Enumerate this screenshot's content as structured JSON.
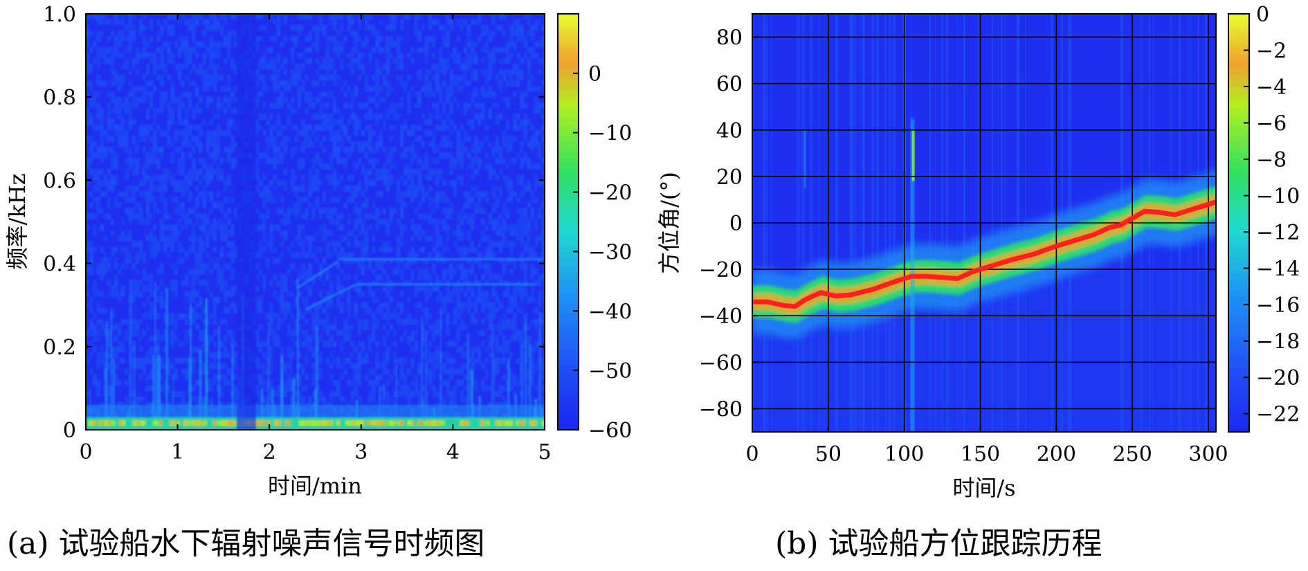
{
  "chart_data": [
    {
      "type": "heatmap",
      "title": "",
      "caption": "(a) 试验船水下辐射噪声信号时频图",
      "xlabel": "时间/min",
      "ylabel": "频率/kHz",
      "xlim": [
        0,
        5
      ],
      "ylim": [
        0,
        1.0
      ],
      "xticks": [
        0,
        1,
        2,
        3,
        4,
        5
      ],
      "xtick_labels": [
        "0",
        "1",
        "2",
        "3",
        "4",
        "5"
      ],
      "yticks": [
        0,
        0.2,
        0.4,
        0.6,
        0.8,
        1.0
      ],
      "ytick_labels": [
        "0",
        "0.2",
        "0.4",
        "0.6",
        "0.8",
        "1.0"
      ],
      "grid": false,
      "colorbar": {
        "range": [
          -60,
          10
        ],
        "ticks": [
          0,
          -10,
          -20,
          -30,
          -40,
          -50,
          -60
        ],
        "tick_labels": [
          "0",
          "−10",
          "−20",
          "−30",
          "−40",
          "−50",
          "−60"
        ]
      },
      "features": [
        {
          "name": "low-frequency band",
          "y": 0.01,
          "level": 0
        },
        {
          "name": "tonal line",
          "x": [
            2.75,
            5.0
          ],
          "y": [
            0.41,
            0.41
          ]
        },
        {
          "name": "tonal line",
          "x": [
            2.95,
            4.9
          ],
          "y": [
            0.35,
            0.35
          ]
        },
        {
          "name": "tonal line",
          "x": [
            2.3,
            2.75
          ],
          "y": [
            0.34,
            0.405
          ]
        },
        {
          "name": "tonal line",
          "x": [
            2.4,
            2.95
          ],
          "y": [
            0.29,
            0.35
          ]
        },
        {
          "name": "broadband stripe",
          "x": 1.75,
          "level": -55
        }
      ],
      "colors": {
        "low": "#1e2ff0",
        "high": "#e6ff2a"
      }
    },
    {
      "type": "heatmap",
      "title": "",
      "caption": "(b) 试验船方位跟踪历程",
      "xlabel": "时间/s",
      "ylabel": "方位角/(°)",
      "xlim": [
        0,
        305
      ],
      "ylim": [
        -90,
        90
      ],
      "xticks": [
        0,
        50,
        100,
        150,
        200,
        250,
        300
      ],
      "xtick_labels": [
        "0",
        "50",
        "100",
        "150",
        "200",
        "250",
        "300"
      ],
      "yticks": [
        -80,
        -60,
        -40,
        -20,
        0,
        20,
        40,
        60,
        80
      ],
      "ytick_labels": [
        "−80",
        "−60",
        "−40",
        "−20",
        "0",
        "20",
        "40",
        "60",
        "80"
      ],
      "grid": true,
      "colorbar": {
        "range": [
          -23,
          0
        ],
        "ticks": [
          0,
          -2,
          -4,
          -6,
          -8,
          -10,
          -12,
          -14,
          -16,
          -18,
          -20,
          -22
        ],
        "tick_labels": [
          "0",
          "−2",
          "−4",
          "−6",
          "−8",
          "−10",
          "−12",
          "−14",
          "−16",
          "−18",
          "−20",
          "−22"
        ]
      },
      "track": {
        "x": [
          0,
          10,
          20,
          28,
          35,
          45,
          55,
          65,
          80,
          95,
          105,
          115,
          125,
          135,
          145,
          155,
          170,
          185,
          200,
          215,
          225,
          235,
          242,
          250,
          258,
          268,
          278,
          290,
          305
        ],
        "y": [
          -34,
          -34,
          -35.5,
          -36,
          -33,
          -30,
          -31.5,
          -31,
          -28.5,
          -25,
          -23,
          -23,
          -23.5,
          -24,
          -21,
          -19,
          -16,
          -13.5,
          -10,
          -7,
          -5,
          -2,
          -1,
          2,
          5,
          4.5,
          3.5,
          6,
          9
        ]
      },
      "colors": {
        "low": "#1e2ff0",
        "high": "#e6ff2a",
        "track": "#ff2020"
      }
    }
  ]
}
